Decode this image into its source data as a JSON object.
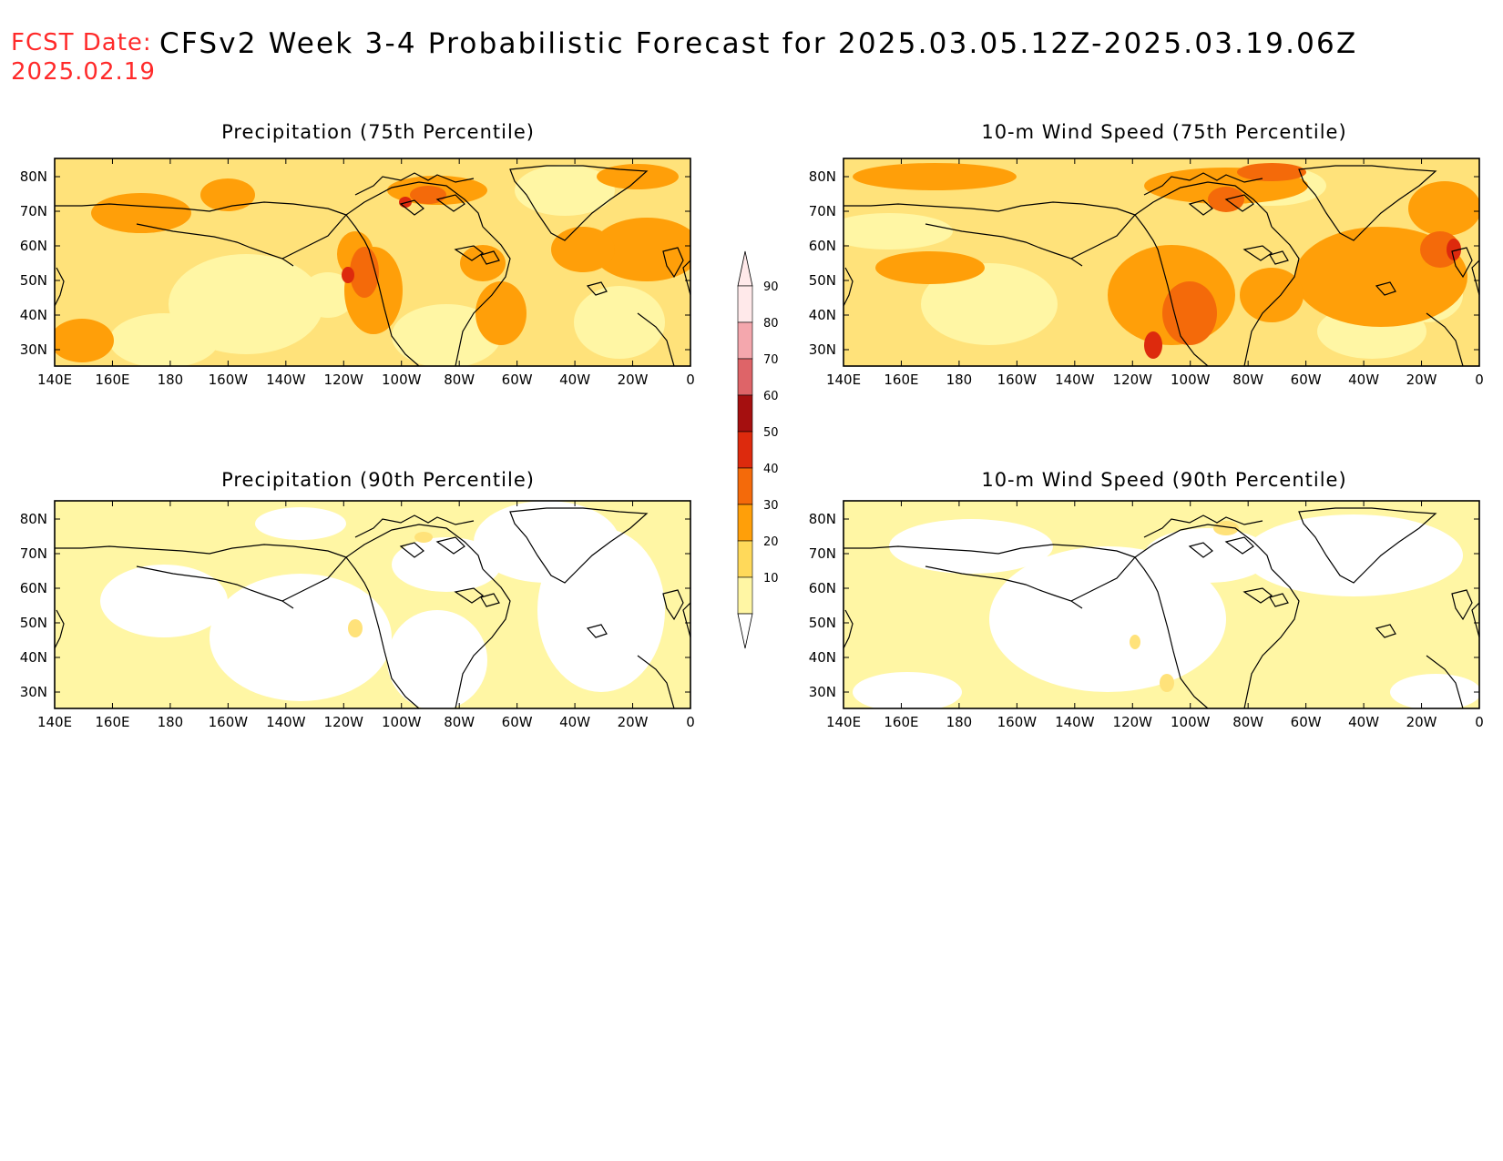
{
  "header": {
    "fcst_label": "FCST Date:",
    "fcst_date": "2025.02.19",
    "title": "CFSv2 Week 3-4 Probabilistic Forecast for 2025.03.05.12Z-2025.03.19.06Z"
  },
  "map": {
    "lon_labels": [
      "140E",
      "160E",
      "180",
      "160W",
      "140W",
      "120W",
      "100W",
      "80W",
      "60W",
      "40W",
      "20W",
      "0"
    ],
    "lat_labels": [
      "80N",
      "70N",
      "60N",
      "50N",
      "40N",
      "30N"
    ]
  },
  "panels": [
    {
      "id": "precip-75",
      "title": "Precipitation (75th Percentile)"
    },
    {
      "id": "wind-75",
      "title": "10-m Wind Speed (75th Percentile)"
    },
    {
      "id": "precip-90",
      "title": "Precipitation (90th Percentile)"
    },
    {
      "id": "wind-90",
      "title": "10-m Wind Speed (90th Percentile)"
    }
  ],
  "colorbar": {
    "labels": [
      "90",
      "80",
      "70",
      "60",
      "50",
      "40",
      "30",
      "20",
      "10"
    ],
    "colors": [
      "#ffe9ea",
      "#f4a7ad",
      "#de6468",
      "#a50f0f",
      "#dd2a0d",
      "#f46a0a",
      "#ff9f09",
      "#ffd95a",
      "#fff6a4"
    ]
  },
  "palette": {
    "p10": "#fff6a4",
    "p20": "#ffe27a",
    "p30": "#ff9f09",
    "p40": "#f46a0a",
    "p50": "#dd2a0d"
  }
}
